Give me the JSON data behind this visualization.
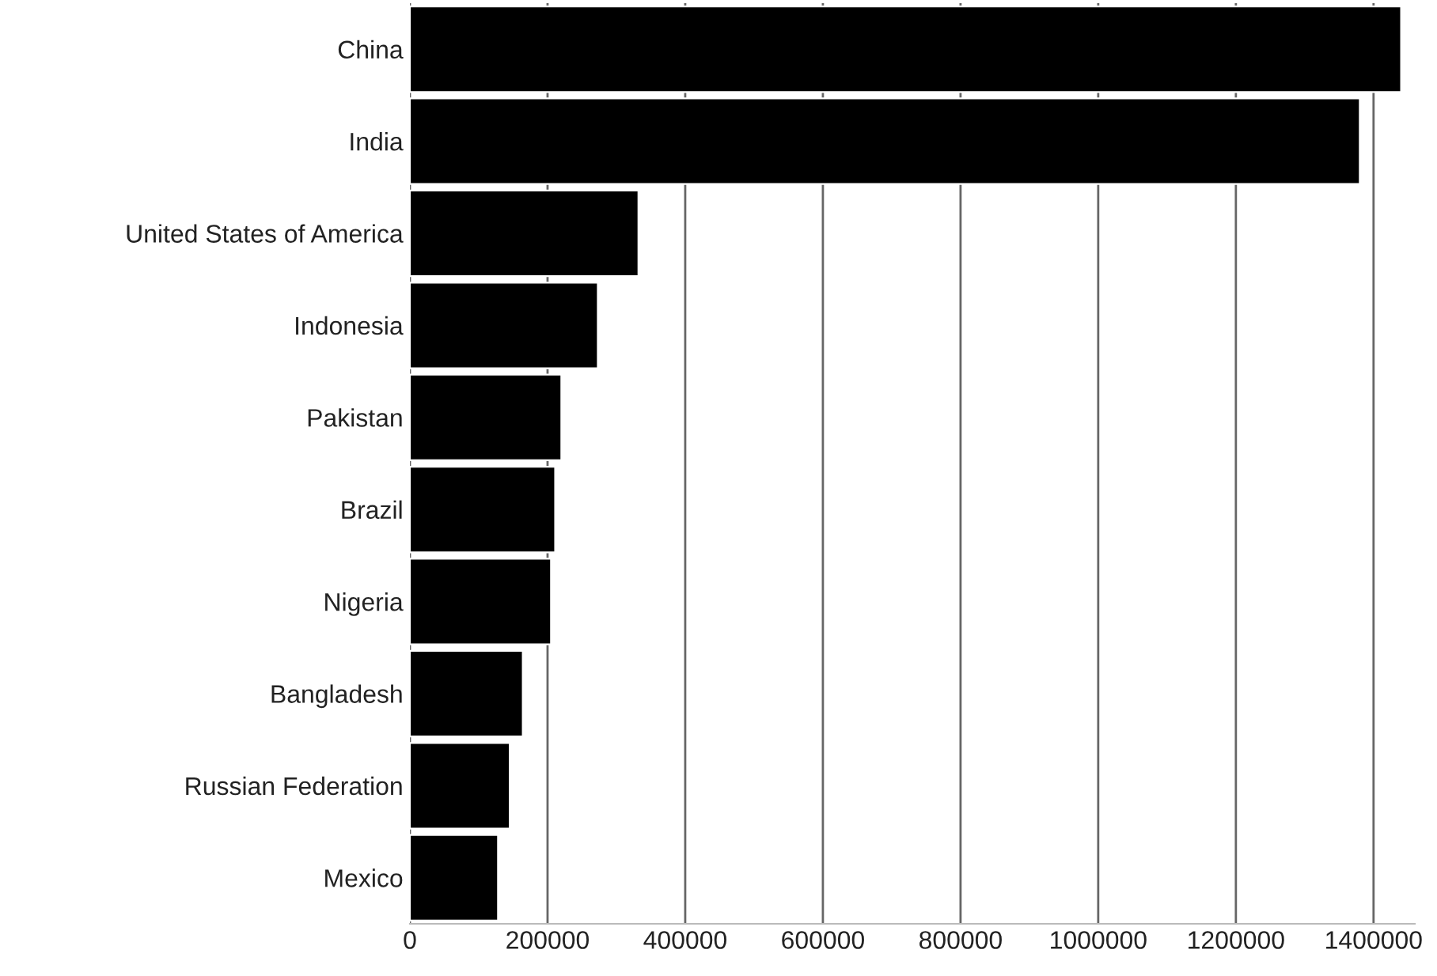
{
  "chart_data": {
    "type": "bar",
    "orientation": "horizontal",
    "categories": [
      "China",
      "India",
      "United States of America",
      "Indonesia",
      "Pakistan",
      "Brazil",
      "Nigeria",
      "Bangladesh",
      "Russian Federation",
      "Mexico"
    ],
    "values": [
      1440000,
      1380000,
      332000,
      273000,
      220000,
      211000,
      205000,
      164000,
      145000,
      128000
    ],
    "color": "#000000",
    "xlim": [
      0,
      1460000
    ],
    "xticks": [
      0,
      200000,
      400000,
      600000,
      800000,
      1000000,
      1200000,
      1400000
    ],
    "grid": "x",
    "legend": false
  }
}
